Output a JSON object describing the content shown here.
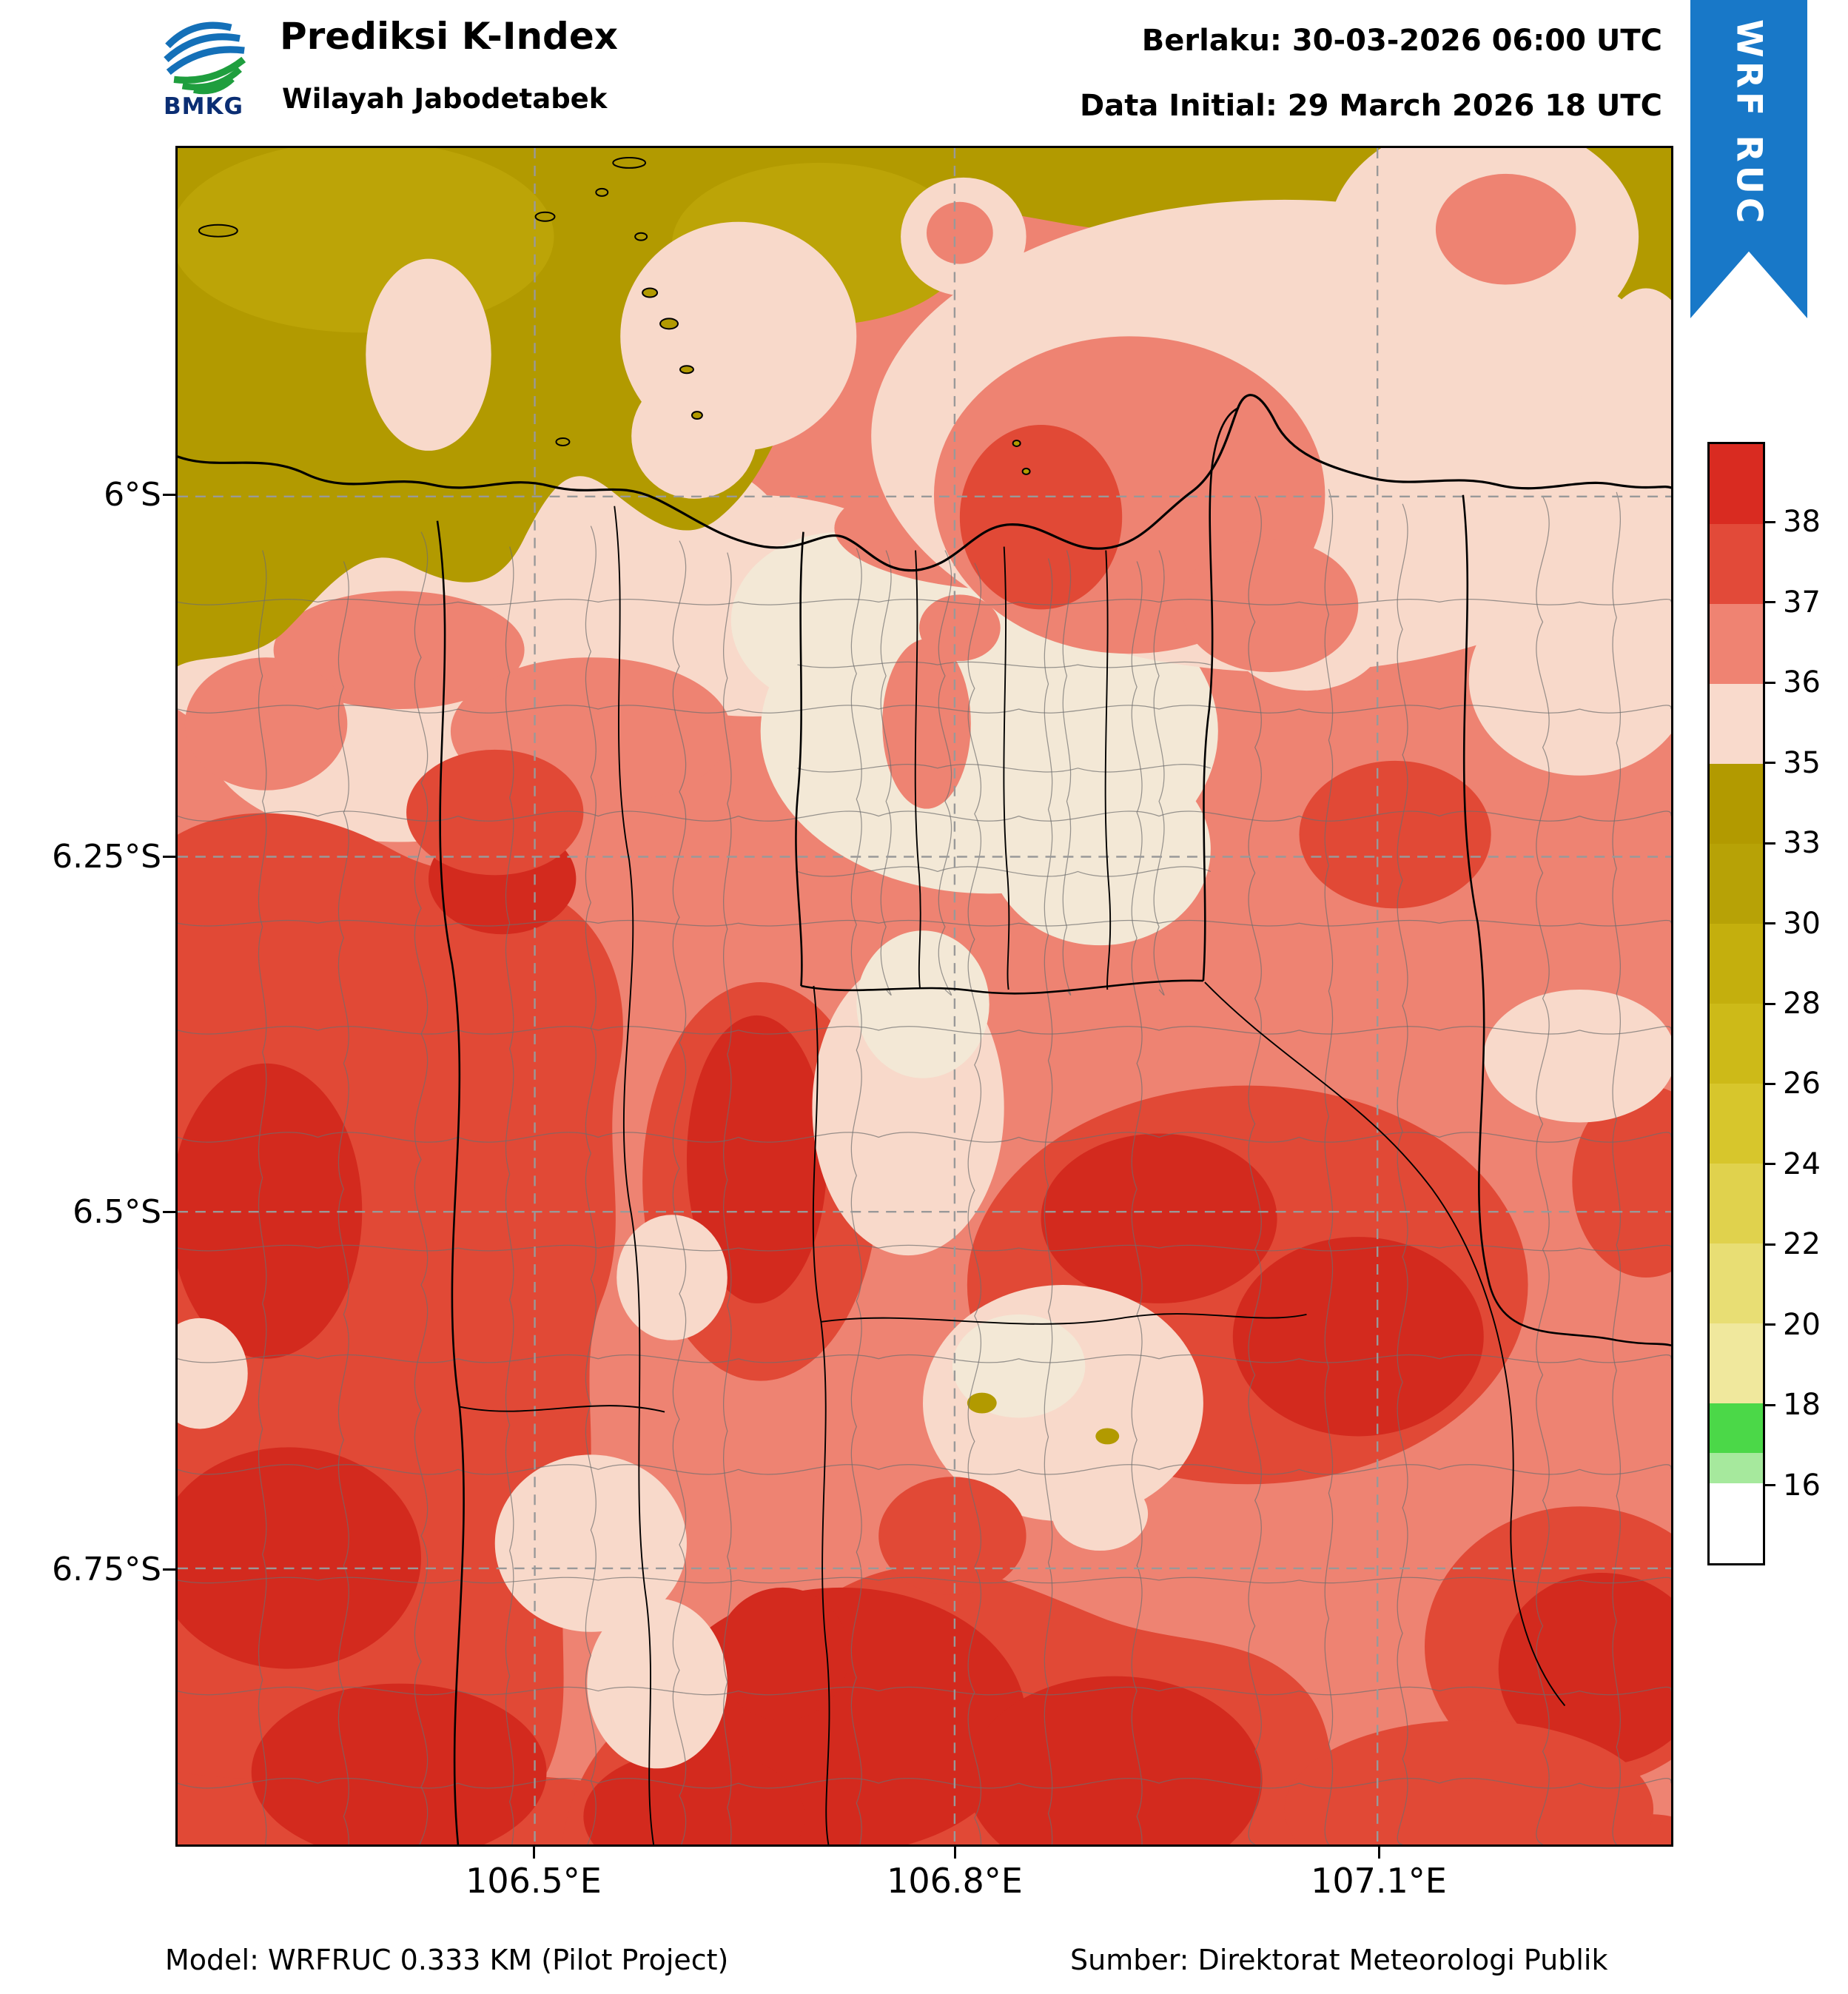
{
  "header": {
    "logo_text": "BMKG",
    "title": "Prediksi K-Index",
    "subtitle": "Wilayah Jabodetabek",
    "valid": "Berlaku: 30-03-2026 06:00 UTC",
    "initial": "Data Initial: 29 March 2026 18 UTC",
    "ribbon": "WRF RUC"
  },
  "map": {
    "x_ticks": [
      "106.5°E",
      "106.8°E",
      "107.1°E"
    ],
    "y_ticks": [
      "6°S",
      "6.25°S",
      "6.5°S",
      "6.75°S"
    ]
  },
  "colorbar": {
    "ticks": [
      "38",
      "37",
      "36",
      "35",
      "33",
      "30",
      "28",
      "26",
      "24",
      "22",
      "20",
      "18",
      "16"
    ],
    "segments": [
      {
        "color": "#d92b21",
        "h": 1
      },
      {
        "color": "#e24a39",
        "h": 1
      },
      {
        "color": "#ef8372",
        "h": 1
      },
      {
        "color": "#f9dacc",
        "h": 1
      },
      {
        "color": "#b29a00",
        "h": 1
      },
      {
        "color": "#b7a206",
        "h": 1
      },
      {
        "color": "#c4af0d",
        "h": 1
      },
      {
        "color": "#cdba18",
        "h": 1
      },
      {
        "color": "#d7c62c",
        "h": 1
      },
      {
        "color": "#e0d24d",
        "h": 1
      },
      {
        "color": "#e8de74",
        "h": 1
      },
      {
        "color": "#f0e89d",
        "h": 1
      },
      {
        "color": "#4bd848",
        "h": 0.62
      },
      {
        "color": "#a6e99d",
        "h": 0.38
      },
      {
        "color": "#ffffff",
        "h": 1
      }
    ]
  },
  "footer": {
    "model": "Model: WRFRUC 0.333 KM (Pilot Project)",
    "source": "Sumber: Direktorat Meteorologi Publik"
  },
  "map_colors": {
    "sea_low_kindex_olive": "#b29a00",
    "pale_pink_35_36": "#f8d9ca",
    "cream": "#f3e8d6",
    "salmon_36_37": "#ee8372",
    "red_37_38": "#e14936",
    "dark_red_38plus": "#d32a1e",
    "ribbon_blue": "#1878c8"
  }
}
